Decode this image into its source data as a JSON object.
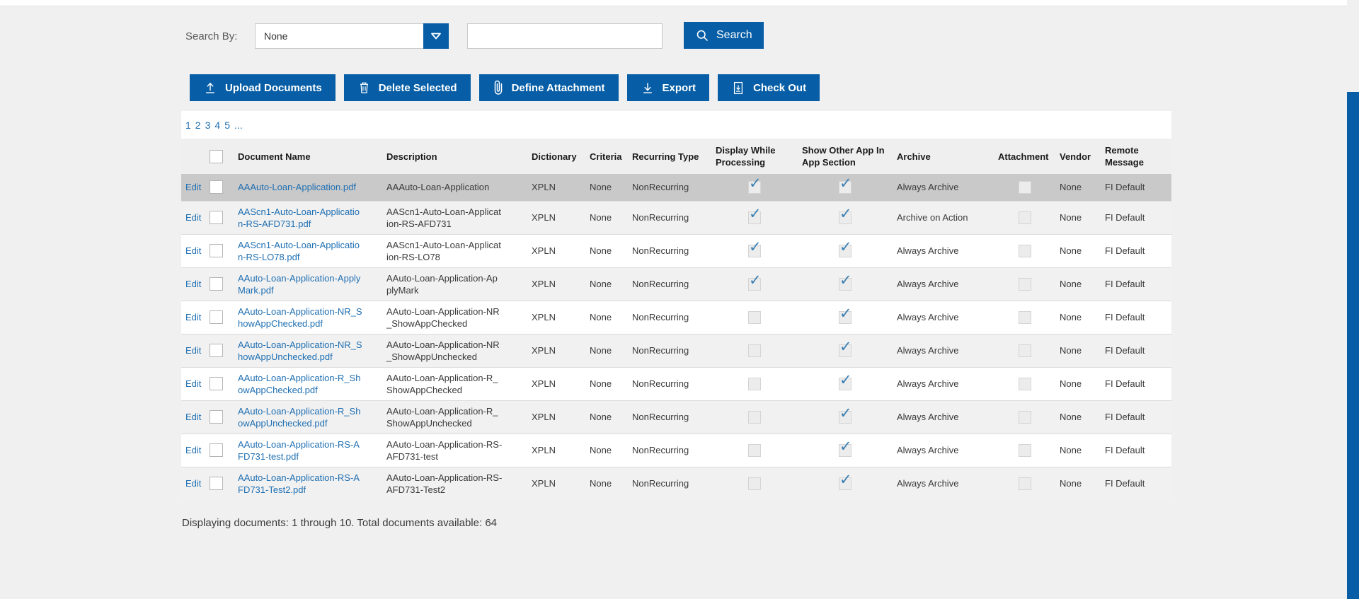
{
  "search_bar": {
    "label": "Search By:",
    "dropdown_value": "None",
    "input_value": "",
    "search_button_label": "Search"
  },
  "toolbar": {
    "upload_label": "Upload Documents",
    "delete_label": "Delete Selected",
    "define_attachment_label": "Define Attachment",
    "export_label": "Export",
    "checkout_label": "Check Out"
  },
  "pagination": {
    "pages": [
      "1",
      "2",
      "3",
      "4",
      "5"
    ],
    "ellipsis": "..."
  },
  "table": {
    "edit_label": "Edit",
    "columns": {
      "document_name": "Document Name",
      "description": "Description",
      "dictionary": "Dictionary",
      "criteria": "Criteria",
      "recurring_type": "Recurring Type",
      "display_while_processing": "Display While Processing",
      "show_other_app": "Show Other App In App Section",
      "archive": "Archive",
      "attachment": "Attachment",
      "vendor": "Vendor",
      "remote_message": "Remote Message"
    },
    "rows": [
      {
        "document_name": "AAAuto-Loan-Application.pdf",
        "description": "AAAuto-Loan-Application",
        "dictionary": "XPLN",
        "criteria": "None",
        "recurring_type": "NonRecurring",
        "display_while_processing": true,
        "show_other_app": true,
        "archive": "Always Archive",
        "attachment": false,
        "vendor": "None",
        "remote_message": "FI Default",
        "selected": true
      },
      {
        "document_name": "AAScn1-Auto-Loan-Application-RS-AFD731.pdf",
        "description": "AAScn1-Auto-Loan-Application-RS-AFD731",
        "dictionary": "XPLN",
        "criteria": "None",
        "recurring_type": "NonRecurring",
        "display_while_processing": true,
        "show_other_app": true,
        "archive": "Archive on Action",
        "attachment": false,
        "vendor": "None",
        "remote_message": "FI Default",
        "selected": false
      },
      {
        "document_name": "AAScn1-Auto-Loan-Application-RS-LO78.pdf",
        "description": "AAScn1-Auto-Loan-Application-RS-LO78",
        "dictionary": "XPLN",
        "criteria": "None",
        "recurring_type": "NonRecurring",
        "display_while_processing": true,
        "show_other_app": true,
        "archive": "Always Archive",
        "attachment": false,
        "vendor": "None",
        "remote_message": "FI Default",
        "selected": false
      },
      {
        "document_name": "AAuto-Loan-Application-ApplyMark.pdf",
        "description": "AAuto-Loan-Application-ApplyMark",
        "dictionary": "XPLN",
        "criteria": "None",
        "recurring_type": "NonRecurring",
        "display_while_processing": true,
        "show_other_app": true,
        "archive": "Always Archive",
        "attachment": false,
        "vendor": "None",
        "remote_message": "FI Default",
        "selected": false
      },
      {
        "document_name": "AAuto-Loan-Application-NR_ShowAppChecked.pdf",
        "description": "AAuto-Loan-Application-NR_ShowAppChecked",
        "dictionary": "XPLN",
        "criteria": "None",
        "recurring_type": "NonRecurring",
        "display_while_processing": false,
        "show_other_app": true,
        "archive": "Always Archive",
        "attachment": false,
        "vendor": "None",
        "remote_message": "FI Default",
        "selected": false
      },
      {
        "document_name": "AAuto-Loan-Application-NR_ShowAppUnchecked.pdf",
        "description": "AAuto-Loan-Application-NR_ShowAppUnchecked",
        "dictionary": "XPLN",
        "criteria": "None",
        "recurring_type": "NonRecurring",
        "display_while_processing": false,
        "show_other_app": true,
        "archive": "Always Archive",
        "attachment": false,
        "vendor": "None",
        "remote_message": "FI Default",
        "selected": false
      },
      {
        "document_name": "AAuto-Loan-Application-R_ShowAppChecked.pdf",
        "description": "AAuto-Loan-Application-R_ShowAppChecked",
        "dictionary": "XPLN",
        "criteria": "None",
        "recurring_type": "NonRecurring",
        "display_while_processing": false,
        "show_other_app": true,
        "archive": "Always Archive",
        "attachment": false,
        "vendor": "None",
        "remote_message": "FI Default",
        "selected": false
      },
      {
        "document_name": "AAuto-Loan-Application-R_ShowAppUnchecked.pdf",
        "description": "AAuto-Loan-Application-R_ShowAppUnchecked",
        "dictionary": "XPLN",
        "criteria": "None",
        "recurring_type": "NonRecurring",
        "display_while_processing": false,
        "show_other_app": true,
        "archive": "Always Archive",
        "attachment": false,
        "vendor": "None",
        "remote_message": "FI Default",
        "selected": false
      },
      {
        "document_name": "AAuto-Loan-Application-RS-AFD731-test.pdf",
        "description": "AAuto-Loan-Application-RS-AFD731-test",
        "dictionary": "XPLN",
        "criteria": "None",
        "recurring_type": "NonRecurring",
        "display_while_processing": false,
        "show_other_app": true,
        "archive": "Always Archive",
        "attachment": false,
        "vendor": "None",
        "remote_message": "FI Default",
        "selected": false
      },
      {
        "document_name": "AAuto-Loan-Application-RS-AFD731-Test2.pdf",
        "description": "AAuto-Loan-Application-RS-AFD731-Test2",
        "dictionary": "XPLN",
        "criteria": "None",
        "recurring_type": "NonRecurring",
        "display_while_processing": false,
        "show_other_app": true,
        "archive": "Always Archive",
        "attachment": false,
        "vendor": "None",
        "remote_message": "FI Default",
        "selected": false
      }
    ]
  },
  "footer": {
    "summary": "Displaying documents: 1 through 10. Total documents available: 64"
  },
  "colors": {
    "primary_blue": "#075ea6",
    "link_blue": "#1f6fb2",
    "check_blue": "#3a7fb3",
    "selected_row": "#c9c9c9",
    "page_background": "#f0f0f0"
  }
}
